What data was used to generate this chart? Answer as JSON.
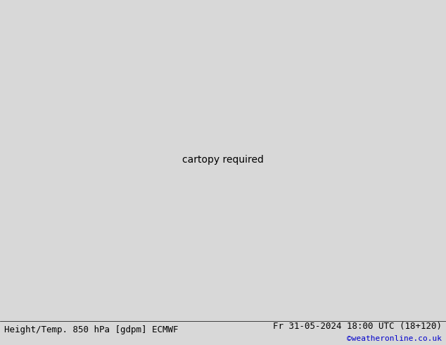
{
  "title_left": "Height/Temp. 850 hPa [gdpm] ECMWF",
  "title_right": "Fr 31-05-2024 18:00 UTC (18+120)",
  "copyright": "©weatheronline.co.uk",
  "fig_width": 6.34,
  "fig_height": 4.9,
  "dpi": 100,
  "extent": [
    -30,
    55,
    24,
    72
  ],
  "bg_color": "#d8d8d8",
  "land_color": "#d0d0d0",
  "border_color": "#aaaaaa",
  "coast_color": "#888888",
  "bottom_bar_color": "#f0f0f0",
  "title_fontsize": 9,
  "copyright_color": "#0000cc",
  "copyright_fontsize": 8,
  "geo_lw": 2.5,
  "temp_lw": 1.5,
  "label_fs": 7,
  "green_color": "#c8e8a0",
  "gray_color": "#b8b8c0",
  "cyan_color": "#00aadd",
  "teal_color": "#00bb88",
  "lgreen_color": "#88cc44",
  "orange_color": "#ff8800",
  "red_color": "#dd2200",
  "magenta_color": "#cc0077"
}
